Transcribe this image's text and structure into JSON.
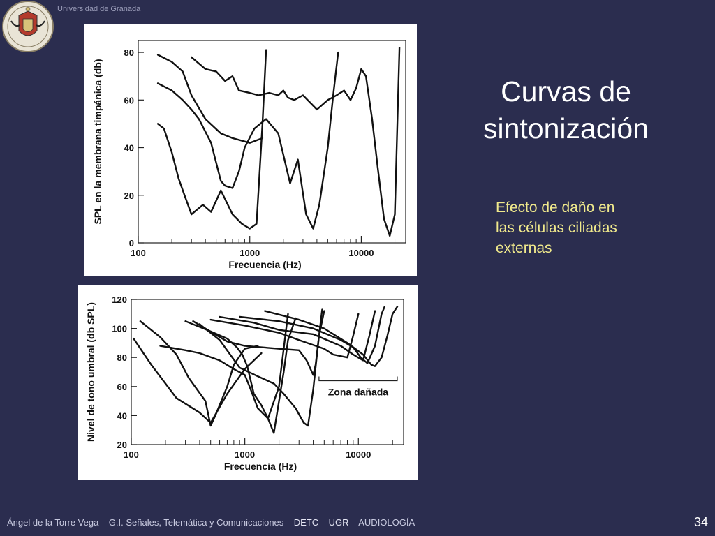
{
  "header": {
    "university": "Universidad de Granada",
    "logo_icon": "university-seal-icon"
  },
  "slide": {
    "title_line1": "Curvas de",
    "title_line2": "sintonización",
    "note_line1": "Efecto de daño en",
    "note_line2": "las células ciliadas",
    "note_line3": "externas",
    "page_number": "34"
  },
  "footer": {
    "author": "Ángel de la Torre Vega",
    "sep1": " – ",
    "course": "G.I. Señales, Telemática y Comunicaciones",
    "sep2": " – ",
    "dept": "DETC",
    "sep3": " – ",
    "org": "UGR",
    "sep4": " – ",
    "subject": "AUDIOLOGÍA"
  },
  "colors": {
    "background": "#2b2d4f",
    "title": "#ffffff",
    "note": "#f0e98c",
    "curve": "#111111"
  },
  "chart_data": [
    {
      "type": "line",
      "title": "",
      "xlabel": "Frecuencia (Hz)",
      "ylabel": "SPL en la membrana timpánica (db)",
      "x_scale": "log",
      "xlim": [
        100,
        25000
      ],
      "ylim": [
        0,
        85
      ],
      "x_ticks": [
        100,
        1000,
        10000
      ],
      "x_tick_labels": [
        "100",
        "1000",
        "10000"
      ],
      "y_ticks": [
        0,
        20,
        40,
        60,
        80
      ],
      "y_tick_labels": [
        "0",
        "20",
        "40",
        "60",
        "80"
      ],
      "grid": false,
      "series": [
        {
          "x": [
            150,
            170,
            200,
            230,
            260,
            300,
            380,
            450,
            550,
            700,
            850,
            1000,
            1150,
            1300,
            1400
          ],
          "y": [
            50,
            48,
            38,
            27,
            20,
            12,
            16,
            13,
            22,
            12,
            8,
            6,
            8,
            50,
            81
          ]
        },
        {
          "x": [
            150,
            200,
            250,
            300,
            350,
            450,
            550,
            600,
            700,
            800,
            900,
            1100,
            1400,
            1800,
            2300,
            2700,
            3200,
            3700,
            4200,
            5000,
            5600,
            6200
          ],
          "y": [
            67,
            64,
            60,
            56,
            52,
            42,
            26,
            24,
            23,
            30,
            40,
            48,
            52,
            46,
            25,
            35,
            12,
            6,
            16,
            40,
            62,
            80
          ]
        },
        {
          "x": [
            150,
            200,
            250,
            300,
            400,
            550,
            700,
            1000,
            1300
          ],
          "y": [
            79,
            76,
            72,
            62,
            52,
            46,
            44,
            42,
            44
          ]
        },
        {
          "x": [
            300,
            400,
            500,
            600,
            700,
            800,
            1000,
            1200,
            1500,
            1800,
            2000,
            2200,
            2500,
            3000,
            4000,
            5000,
            6000,
            7000,
            8000,
            9000,
            10000,
            11000,
            12500,
            14000,
            16000,
            18000,
            20000,
            22000
          ],
          "y": [
            78,
            73,
            72,
            68,
            70,
            64,
            63,
            62,
            63,
            62,
            64,
            61,
            60,
            62,
            56,
            60,
            62,
            64,
            60,
            65,
            73,
            70,
            52,
            32,
            10,
            3,
            12,
            82
          ]
        }
      ]
    },
    {
      "type": "line",
      "title": "",
      "xlabel": "Frecuencia (Hz)",
      "ylabel": "Nivel de tono umbral (db SPL)",
      "x_scale": "log",
      "xlim": [
        100,
        25000
      ],
      "ylim": [
        20,
        120
      ],
      "x_ticks": [
        100,
        1000,
        10000
      ],
      "x_tick_labels": [
        "100",
        "1000",
        "10000"
      ],
      "y_ticks": [
        20,
        40,
        60,
        80,
        100,
        120
      ],
      "y_tick_labels": [
        "20",
        "40",
        "60",
        "80",
        "100",
        "120"
      ],
      "grid": false,
      "annotations": [
        {
          "text": "Zona dañada",
          "x_range": [
            4500,
            22000
          ]
        }
      ],
      "series": [
        {
          "x": [
            105,
            150,
            250,
            400,
            500,
            700,
            1000,
            1400
          ],
          "y": [
            93,
            75,
            52,
            42,
            35,
            55,
            72,
            83
          ]
        },
        {
          "x": [
            120,
            180,
            250,
            320,
            450,
            500,
            550,
            700,
            800,
            1000,
            1300
          ],
          "y": [
            105,
            94,
            82,
            66,
            50,
            33,
            40,
            60,
            75,
            86,
            88
          ]
        },
        {
          "x": [
            180,
            300,
            400,
            600,
            800,
            1000,
            1100,
            1300,
            1600,
            2000,
            2400
          ],
          "y": [
            88,
            85,
            83,
            78,
            72,
            68,
            60,
            45,
            38,
            60,
            110
          ]
        },
        {
          "x": [
            300,
            500,
            700,
            850,
            950,
            1050,
            1200,
            1400,
            1600,
            1800,
            2000,
            2200,
            2400,
            2800
          ],
          "y": [
            105,
            98,
            93,
            87,
            82,
            74,
            55,
            47,
            38,
            28,
            50,
            70,
            92,
            107
          ]
        },
        {
          "x": [
            350,
            700,
            1000,
            2000,
            3000,
            3500,
            4000,
            4200,
            4500,
            4800
          ],
          "y": [
            105,
            91,
            88,
            86,
            85,
            78,
            68,
            75,
            95,
            113
          ]
        },
        {
          "x": [
            400,
            600,
            900,
            1300,
            1800,
            2200,
            2800,
            3300,
            3600,
            4000,
            4500,
            5000
          ],
          "y": [
            103,
            92,
            73,
            67,
            62,
            55,
            45,
            35,
            33,
            58,
            95,
            112
          ]
        },
        {
          "x": [
            500,
            1000,
            2000,
            3000,
            5000,
            6000,
            8000,
            9000,
            10000
          ],
          "y": [
            106,
            102,
            97,
            92,
            86,
            82,
            80,
            95,
            110
          ]
        },
        {
          "x": [
            600,
            1200,
            2000,
            4000,
            7000,
            9000,
            11000,
            12500,
            14000
          ],
          "y": [
            108,
            104,
            99,
            96,
            88,
            82,
            78,
            95,
            112
          ]
        },
        {
          "x": [
            900,
            2000,
            4000,
            7000,
            9000,
            10500,
            12000,
            14000,
            16000,
            17000
          ],
          "y": [
            108,
            105,
            100,
            92,
            87,
            80,
            76,
            88,
            110,
            115
          ]
        },
        {
          "x": [
            1500,
            3000,
            5000,
            8000,
            11000,
            13000,
            14000,
            16000,
            18000,
            20000,
            22000
          ],
          "y": [
            112,
            106,
            100,
            90,
            82,
            75,
            74,
            80,
            95,
            110,
            115
          ]
        }
      ]
    }
  ]
}
